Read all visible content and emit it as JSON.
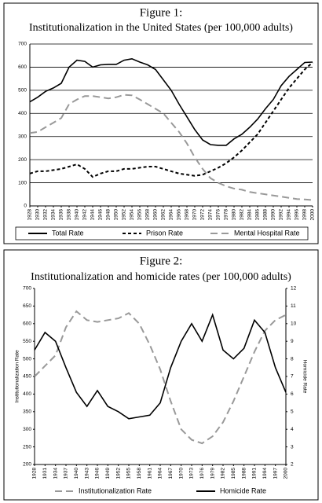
{
  "chart_data": [
    {
      "type": "line",
      "title": "Figure 1:",
      "subtitle": "Institutionalization in the United States (per 100,000 adults)",
      "categories": [
        "1928",
        "1930",
        "1932",
        "1934",
        "1936",
        "1938",
        "1940",
        "1942",
        "1944",
        "1946",
        "1948",
        "1950",
        "1952",
        "1954",
        "1956",
        "1958",
        "1960",
        "1962",
        "1964",
        "1966",
        "1968",
        "1970",
        "1972",
        "1974",
        "1976",
        "1978",
        "1980",
        "1982",
        "1984",
        "1986",
        "1988",
        "1990",
        "1992",
        "1994",
        "1996",
        "1998",
        "2000"
      ],
      "series": [
        {
          "name": "Total Rate",
          "color": "#000000",
          "line_style": "solid",
          "values": [
            450,
            470,
            495,
            510,
            530,
            600,
            630,
            625,
            600,
            610,
            612,
            612,
            630,
            636,
            622,
            610,
            590,
            545,
            500,
            440,
            385,
            330,
            285,
            265,
            262,
            262,
            290,
            310,
            340,
            375,
            420,
            460,
            520,
            560,
            590,
            620,
            622
          ]
        },
        {
          "name": "Prison Rate",
          "color": "#000000",
          "line_style": "dashed",
          "values": [
            140,
            150,
            150,
            155,
            160,
            170,
            180,
            160,
            125,
            140,
            150,
            150,
            160,
            160,
            165,
            170,
            170,
            160,
            150,
            140,
            135,
            130,
            135,
            150,
            165,
            185,
            210,
            240,
            275,
            310,
            360,
            410,
            460,
            510,
            550,
            590,
            620
          ]
        },
        {
          "name": "Mental Hospital Rate",
          "color": "#999999",
          "line_style": "long-dashed",
          "values": [
            315,
            320,
            340,
            360,
            380,
            440,
            460,
            475,
            475,
            470,
            465,
            470,
            480,
            478,
            460,
            440,
            420,
            400,
            360,
            320,
            270,
            210,
            160,
            120,
            100,
            85,
            75,
            70,
            60,
            55,
            50,
            45,
            40,
            35,
            30,
            28,
            25
          ]
        }
      ],
      "ylim": [
        0,
        700
      ],
      "yticks": [
        0,
        100,
        200,
        300,
        400,
        500,
        600,
        700
      ],
      "grid": true,
      "legend": "bottom"
    },
    {
      "type": "line",
      "title": "Figure 2:",
      "subtitle": "Institutionalization and homicide rates (per 100,000 adults)",
      "y_label": "Institutionalization Rate",
      "y2_label": "Homicide Rate",
      "categories": [
        "1928",
        "1931",
        "1934",
        "1937",
        "1940",
        "1943",
        "1946",
        "1949",
        "1952",
        "1955",
        "1958",
        "1961",
        "1964",
        "1967",
        "1970",
        "1973",
        "1976",
        "1979",
        "1982",
        "1985",
        "1988",
        "1991",
        "1994",
        "1997",
        "2000"
      ],
      "series": [
        {
          "name": "Institutionalization Rate",
          "color": "#999999",
          "line_style": "long-dashed",
          "values": [
            450,
            480,
            510,
            590,
            635,
            610,
            605,
            610,
            615,
            630,
            600,
            540,
            470,
            380,
            300,
            270,
            260,
            280,
            320,
            380,
            450,
            520,
            580,
            610,
            625
          ]
        },
        {
          "name": "Homicide Rate",
          "color": "#000000",
          "line_style": "solid",
          "axis": "y2",
          "values": [
            8.5,
            9.5,
            9.0,
            7.5,
            6.1,
            5.3,
            6.2,
            5.3,
            5.0,
            4.6,
            4.7,
            4.8,
            5.5,
            7.5,
            9.0,
            10.0,
            9.0,
            10.5,
            8.5,
            8.0,
            8.6,
            10.2,
            9.5,
            7.5,
            6.1
          ]
        }
      ],
      "ylim": [
        200,
        700
      ],
      "yticks": [
        200,
        250,
        300,
        350,
        400,
        450,
        500,
        550,
        600,
        650,
        700
      ],
      "y2lim": [
        2,
        12
      ],
      "y2ticks": [
        2,
        3,
        4,
        5,
        6,
        7,
        8,
        9,
        10,
        11,
        12
      ],
      "grid": false,
      "legend": "bottom"
    }
  ]
}
